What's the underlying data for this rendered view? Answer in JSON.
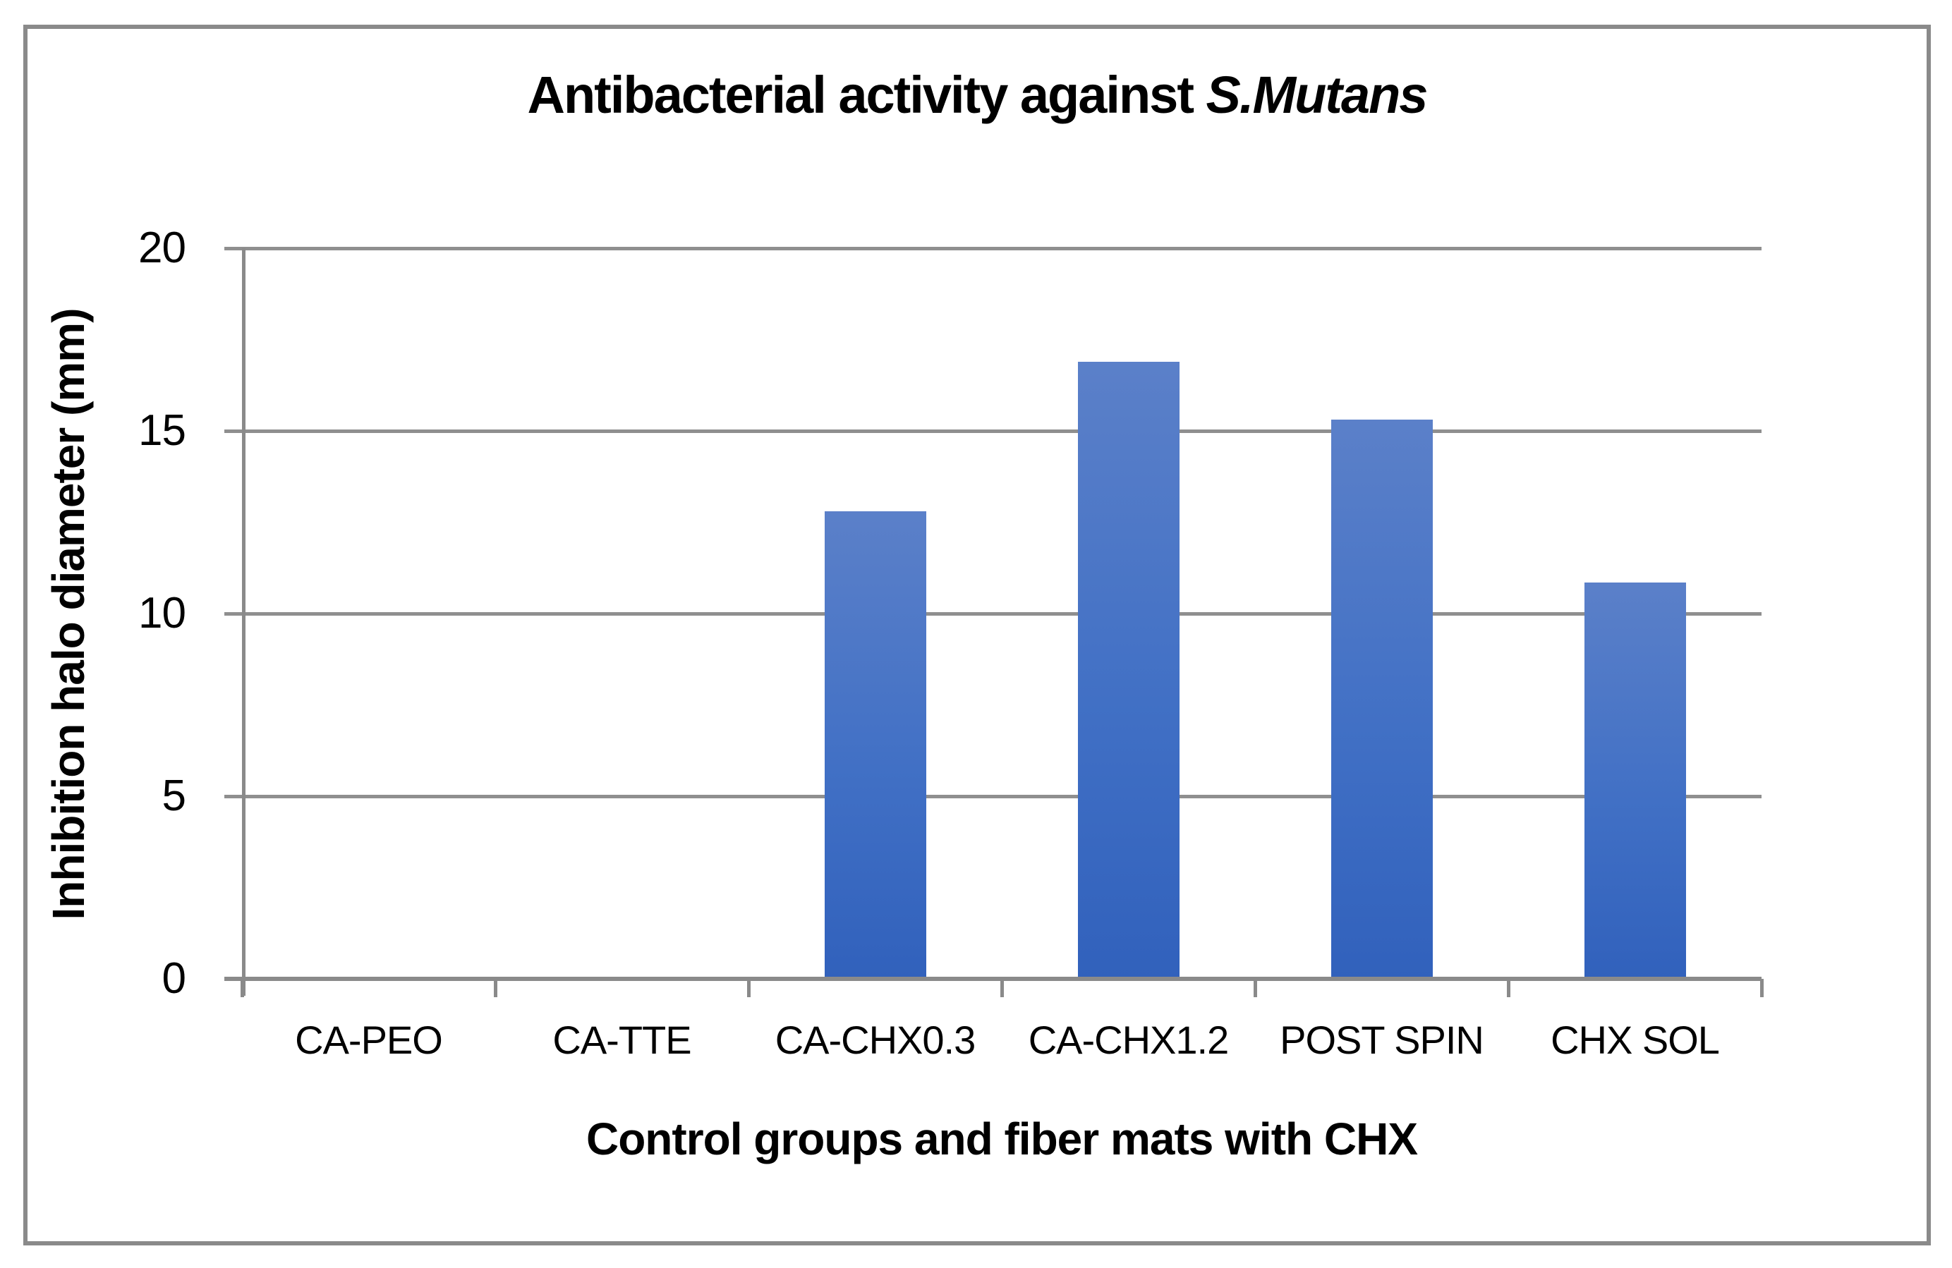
{
  "chart_data": {
    "type": "bar",
    "title_prefix": "Antibacterial activity against ",
    "title_italic": "S.Mutans",
    "title_full": "Antibacterial activity against S.Mutans",
    "categories": [
      "CA-PEO",
      "CA-TTE",
      "CA-CHX0.3",
      "CA-CHX1.2",
      "POST SPIN",
      "CHX SOL"
    ],
    "values": [
      0,
      0,
      12.8,
      16.9,
      15.3,
      10.85
    ],
    "xlabel": "Control groups and fiber mats with CHX",
    "ylabel": "Inhibition halo diameter (mm)",
    "ylim": [
      0,
      20
    ],
    "yticks": [
      0,
      5,
      10,
      15,
      20
    ],
    "grid": "horizontal gridlines at each y tick",
    "legend": "none",
    "colors": {
      "bar_gradient_top": "#5b80c9",
      "bar_gradient_mid": "#4170c5",
      "bar_gradient_bottom": "#3161bc",
      "axis_and_grid": "#8a8a8a",
      "outer_border": "#8a8a8a",
      "text": "#000000",
      "background": "#ffffff"
    }
  }
}
